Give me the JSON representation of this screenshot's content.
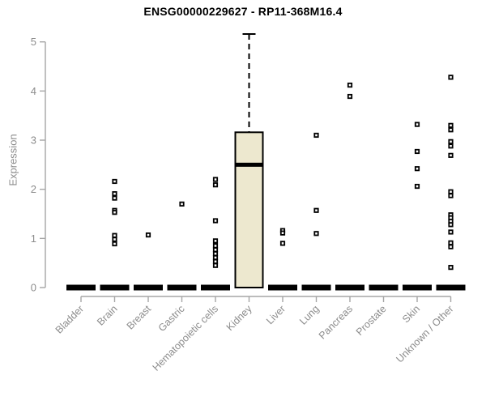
{
  "chart_data": {
    "type": "boxplot",
    "title": "ENSG00000229627 - RP11-368M16.4",
    "ylabel": "Expression",
    "xlabel": "",
    "ylim": [
      0,
      5
    ],
    "yticks": [
      0,
      1,
      2,
      3,
      4,
      5
    ],
    "grid": false,
    "legend": "none",
    "categories": [
      "Bladder",
      "Brain",
      "Breast",
      "Gastric",
      "Hematopoietic cells",
      "Kidney",
      "Liver",
      "Lung",
      "Pancreas",
      "Prostate",
      "Skin",
      "Unknown / Other"
    ],
    "series": [
      {
        "category": "Bladder",
        "box": {
          "min": 0,
          "q1": 0,
          "median": 0,
          "q3": 0,
          "max": 0
        },
        "points": []
      },
      {
        "category": "Brain",
        "box": {
          "min": 0,
          "q1": 0,
          "median": 0,
          "q3": 0,
          "max": 0
        },
        "points": [
          2.16,
          1.91,
          1.82,
          1.57,
          1.53,
          1.06,
          0.98,
          0.89
        ]
      },
      {
        "category": "Breast",
        "box": {
          "min": 0,
          "q1": 0,
          "median": 0,
          "q3": 0,
          "max": 0
        },
        "points": [
          1.07
        ]
      },
      {
        "category": "Gastric",
        "box": {
          "min": 0,
          "q1": 0,
          "median": 0,
          "q3": 0,
          "max": 0
        },
        "points": [
          1.7
        ]
      },
      {
        "category": "Hematopoietic cells",
        "box": {
          "min": 0,
          "q1": 0,
          "median": 0,
          "q3": 0,
          "max": 0
        },
        "points": [
          2.2,
          2.09,
          1.36,
          0.95,
          0.85,
          0.77,
          0.69,
          0.61,
          0.53,
          0.45
        ]
      },
      {
        "category": "Kidney",
        "box": {
          "min": 0,
          "q1": 0,
          "median": 2.5,
          "q3": 3.16,
          "max": 5.16
        },
        "points": []
      },
      {
        "category": "Liver",
        "box": {
          "min": 0,
          "q1": 0,
          "median": 0,
          "q3": 0,
          "max": 0
        },
        "points": [
          1.16,
          1.11,
          0.9
        ]
      },
      {
        "category": "Lung",
        "box": {
          "min": 0,
          "q1": 0,
          "median": 0,
          "q3": 0,
          "max": 0
        },
        "points": [
          3.1,
          1.57,
          1.1
        ]
      },
      {
        "category": "Pancreas",
        "box": {
          "min": 0,
          "q1": 0,
          "median": 0,
          "q3": 0,
          "max": 0
        },
        "points": [
          4.12,
          3.89
        ]
      },
      {
        "category": "Prostate",
        "box": {
          "min": 0,
          "q1": 0,
          "median": 0,
          "q3": 0,
          "max": 0
        },
        "points": []
      },
      {
        "category": "Skin",
        "box": {
          "min": 0,
          "q1": 0,
          "median": 0,
          "q3": 0,
          "max": 0
        },
        "points": [
          3.32,
          2.77,
          2.42,
          2.06
        ]
      },
      {
        "category": "Unknown / Other",
        "box": {
          "min": 0,
          "q1": 0,
          "median": 0,
          "q3": 0,
          "max": 0
        },
        "points": [
          4.28,
          3.3,
          3.21,
          2.97,
          2.88,
          2.69,
          1.95,
          1.87,
          1.48,
          1.42,
          1.35,
          1.28,
          1.13,
          0.91,
          0.83,
          0.41
        ]
      }
    ],
    "colors": {
      "box_fill": "#EDE8CF",
      "box_border": "#000000",
      "median": "#000000",
      "marker": "#000000",
      "zero_bar": "#000000",
      "axis": "#A6A6A6",
      "tick_text": "#8C8C8C",
      "title_text": "#000000",
      "background": "#FFFFFF"
    }
  }
}
